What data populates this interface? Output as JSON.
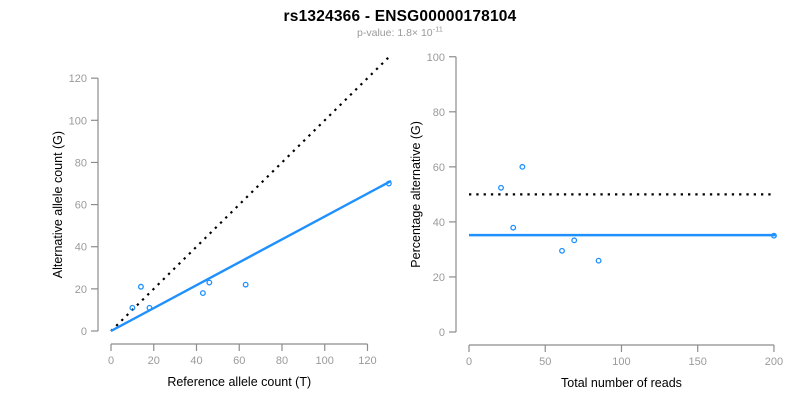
{
  "header": {
    "title": "rs1324366 - ENSG00000178104",
    "subtitle_prefix": "p-value: 1.8× 10",
    "subtitle_exponent": "-11"
  },
  "colors": {
    "accent_blue": "#1E90FF",
    "axis_line_gray": "#8c8c8c",
    "tick_label_gray": "#9a9a9a",
    "identity_black": "#000000",
    "title_black": "#000000",
    "subtitle_gray": "#9a9a9a"
  },
  "chart_data": [
    {
      "type": "scatter",
      "name": "allele-counts-panel",
      "xlabel": "Reference allele count (T)",
      "ylabel": "Alternative allele count (G)",
      "xlim": [
        0,
        131
      ],
      "ylim": [
        0,
        131
      ],
      "xticks": [
        0,
        20,
        40,
        60,
        80,
        100,
        120
      ],
      "yticks": [
        0,
        20,
        40,
        60,
        80,
        100,
        120
      ],
      "grid": false,
      "legend": "none",
      "points": [
        {
          "x": 10,
          "y": 11
        },
        {
          "x": 14,
          "y": 21
        },
        {
          "x": 18,
          "y": 11
        },
        {
          "x": 43,
          "y": 18
        },
        {
          "x": 46,
          "y": 23
        },
        {
          "x": 63,
          "y": 22
        },
        {
          "x": 130,
          "y": 70
        }
      ],
      "lines": [
        {
          "name": "identity-line",
          "style": "dotted",
          "color": "#000000",
          "x1": 0,
          "y1": 0,
          "x2": 130,
          "y2": 130
        },
        {
          "name": "fit-line",
          "style": "solid",
          "color": "#1E90FF",
          "x1": 0,
          "y1": 0,
          "x2": 131,
          "y2": 71.2
        }
      ]
    },
    {
      "type": "scatter",
      "name": "percentage-panel",
      "xlabel": "Total number of reads",
      "ylabel": "Percentage alternative (G)",
      "xlim": [
        0,
        202
      ],
      "ylim": [
        0,
        101
      ],
      "xticks": [
        0,
        50,
        100,
        150,
        200
      ],
      "yticks": [
        0,
        20,
        40,
        60,
        80,
        100
      ],
      "grid": false,
      "legend": "none",
      "points": [
        {
          "x": 21,
          "y": 52.4
        },
        {
          "x": 29,
          "y": 37.9
        },
        {
          "x": 35,
          "y": 60
        },
        {
          "x": 61,
          "y": 29.5
        },
        {
          "x": 69,
          "y": 33.3
        },
        {
          "x": 85,
          "y": 25.9
        },
        {
          "x": 200,
          "y": 35
        }
      ],
      "lines": [
        {
          "name": "expected-50pct-line",
          "style": "dotted",
          "color": "#000000",
          "x1": 0,
          "y1": 50,
          "x2": 200,
          "y2": 50
        },
        {
          "name": "observed-fraction-line",
          "style": "solid",
          "color": "#1E90FF",
          "x1": 0,
          "y1": 35.2,
          "x2": 201,
          "y2": 35.2
        }
      ]
    }
  ]
}
